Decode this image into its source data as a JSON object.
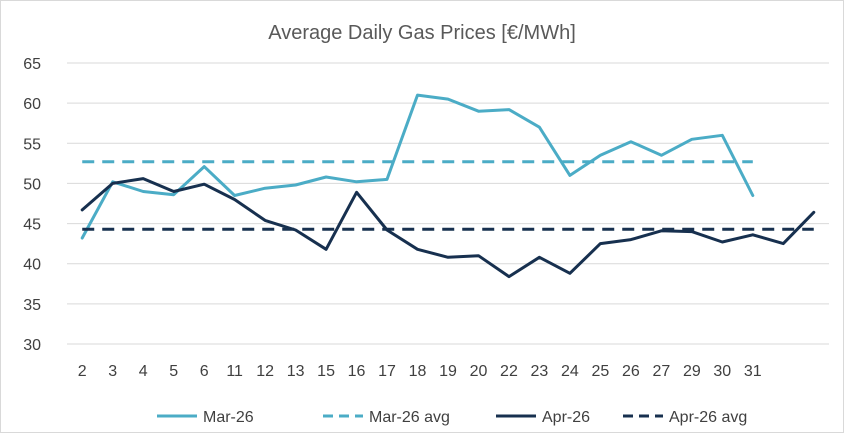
{
  "chart_data": {
    "type": "line",
    "title": "Average Daily Gas Prices [€/MWh]",
    "xlabel": "",
    "ylabel": "",
    "ylim": [
      30,
      65
    ],
    "yticks": [
      30,
      35,
      40,
      45,
      50,
      55,
      60,
      65
    ],
    "grid": true,
    "legend": "bottom",
    "categories": [
      "2",
      "3",
      "4",
      "5",
      "6",
      "11",
      "12",
      "13",
      "15",
      "16",
      "17",
      "18",
      "19",
      "20",
      "22",
      "23",
      "24",
      "25",
      "26",
      "27",
      "29",
      "30",
      "31",
      "",
      ""
    ],
    "series": [
      {
        "name": "Mar-26",
        "style": "solid",
        "color": "#4bacc6",
        "values": [
          43.2,
          50.2,
          49.0,
          48.6,
          52.1,
          48.5,
          49.4,
          49.8,
          50.8,
          50.2,
          50.5,
          61.0,
          60.5,
          59.0,
          59.2,
          57.0,
          51.0,
          53.5,
          55.2,
          53.5,
          55.5,
          56.0,
          48.5,
          null,
          null
        ]
      },
      {
        "name": "Mar-26 avg",
        "style": "dashed",
        "color": "#4bacc6",
        "values": [
          52.7,
          52.7,
          52.7,
          52.7,
          52.7,
          52.7,
          52.7,
          52.7,
          52.7,
          52.7,
          52.7,
          52.7,
          52.7,
          52.7,
          52.7,
          52.7,
          52.7,
          52.7,
          52.7,
          52.7,
          52.7,
          52.7,
          52.7,
          null,
          null
        ]
      },
      {
        "name": "Apr-26",
        "style": "solid",
        "color": "#17304f",
        "values": [
          46.7,
          50.0,
          50.6,
          49.0,
          49.9,
          48.0,
          45.4,
          44.2,
          41.8,
          48.9,
          44.2,
          41.8,
          40.8,
          41.0,
          38.4,
          40.8,
          38.8,
          42.5,
          43.0,
          44.1,
          44.0,
          42.7,
          43.6,
          42.5,
          46.4
        ]
      },
      {
        "name": "Apr-26 avg",
        "style": "dashed",
        "color": "#17304f",
        "values": [
          44.3,
          44.3,
          44.3,
          44.3,
          44.3,
          44.3,
          44.3,
          44.3,
          44.3,
          44.3,
          44.3,
          44.3,
          44.3,
          44.3,
          44.3,
          44.3,
          44.3,
          44.3,
          44.3,
          44.3,
          44.3,
          44.3,
          44.3,
          44.3,
          44.3
        ]
      }
    ]
  }
}
